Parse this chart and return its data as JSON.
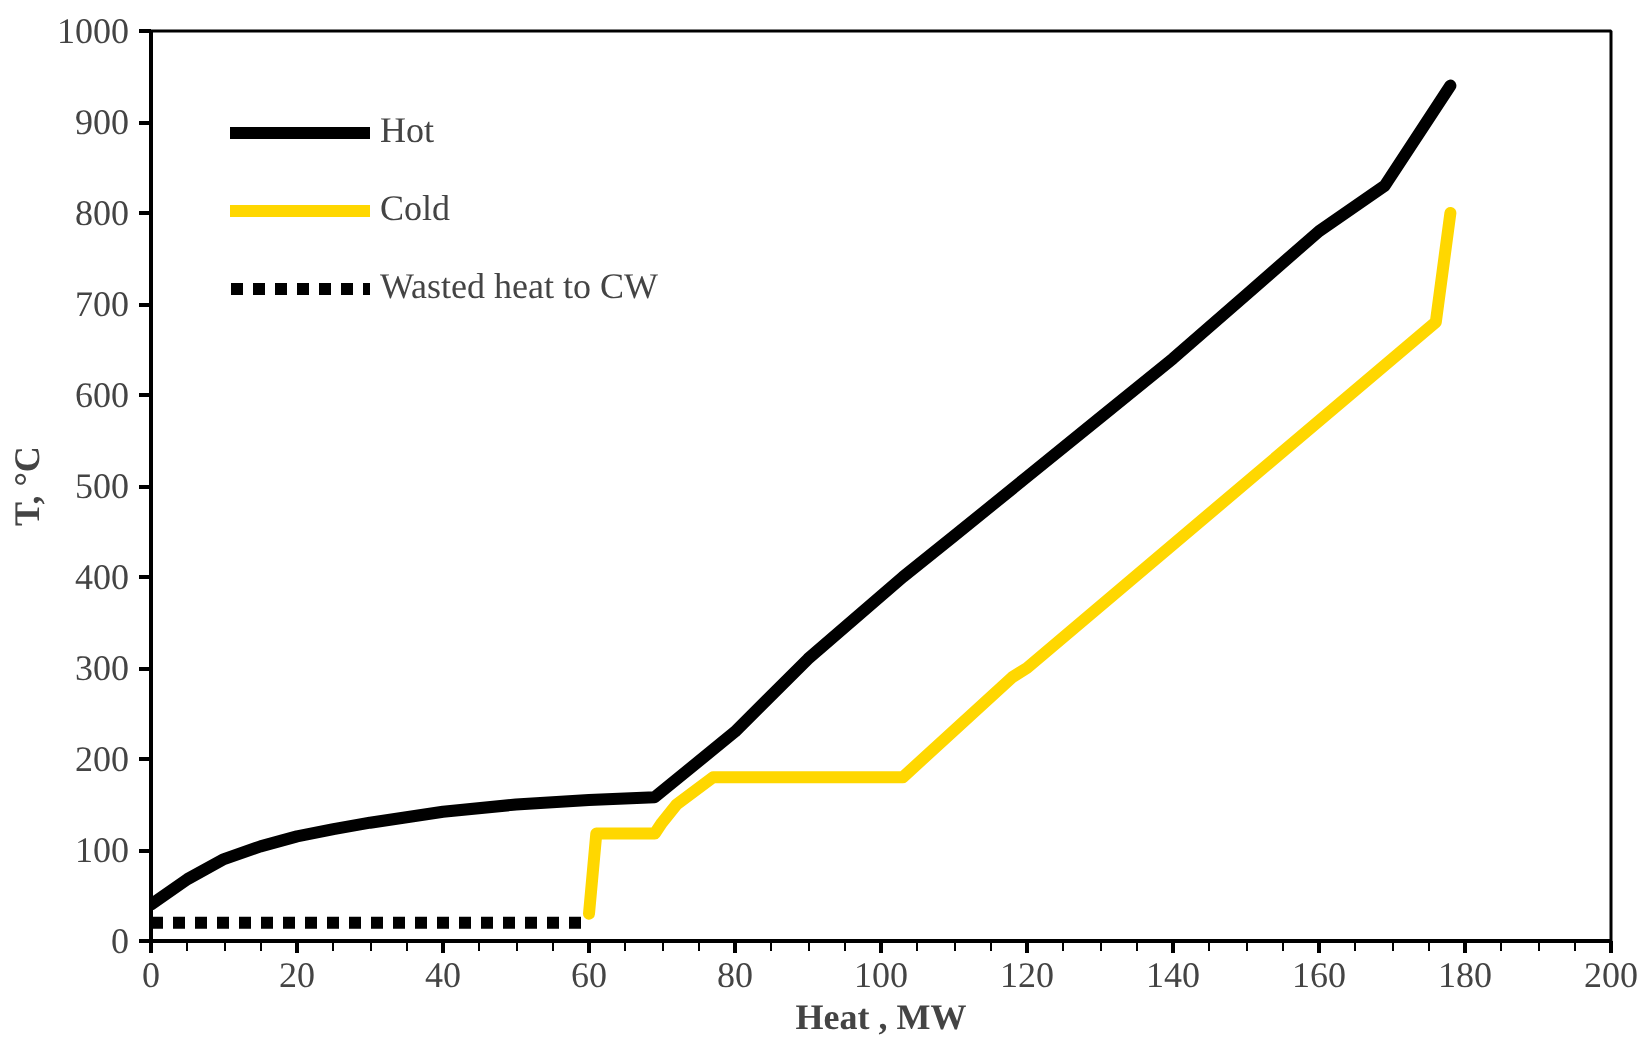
{
  "chart_data": {
    "type": "line",
    "xlabel": "Heat , MW",
    "ylabel": "T, °C",
    "xlim": [
      0,
      200
    ],
    "ylim": [
      0,
      1000
    ],
    "xticks": [
      0,
      20,
      40,
      60,
      80,
      100,
      120,
      140,
      160,
      180,
      200
    ],
    "yticks": [
      0,
      100,
      200,
      300,
      400,
      500,
      600,
      700,
      800,
      900,
      1000
    ],
    "grid": false,
    "legend": "top left",
    "marker": "none",
    "series": [
      {
        "name": "Hot",
        "color": "#000000",
        "line_style": "solid",
        "x": [
          0,
          5,
          10,
          15,
          20,
          25,
          30,
          40,
          50,
          60,
          69,
          80,
          90,
          103,
          110,
          120,
          130,
          140,
          150,
          160,
          169,
          178
        ],
        "values": [
          40,
          68,
          90,
          104,
          115,
          123,
          130,
          142,
          150,
          155,
          158,
          230,
          310,
          400,
          445,
          510,
          575,
          640,
          710,
          780,
          830,
          940
        ]
      },
      {
        "name": "Cold",
        "color": "#ffd700",
        "line_style": "solid",
        "x": [
          60,
          61,
          69,
          70,
          72,
          77,
          103,
          118,
          120,
          176,
          178
        ],
        "values": [
          30,
          118,
          118,
          130,
          150,
          180,
          180,
          290,
          300,
          680,
          800
        ]
      },
      {
        "name": "Wasted heat to CW",
        "color": "#000000",
        "line_style": "dashed",
        "x": [
          0,
          60
        ],
        "values": [
          20,
          20
        ]
      }
    ]
  }
}
